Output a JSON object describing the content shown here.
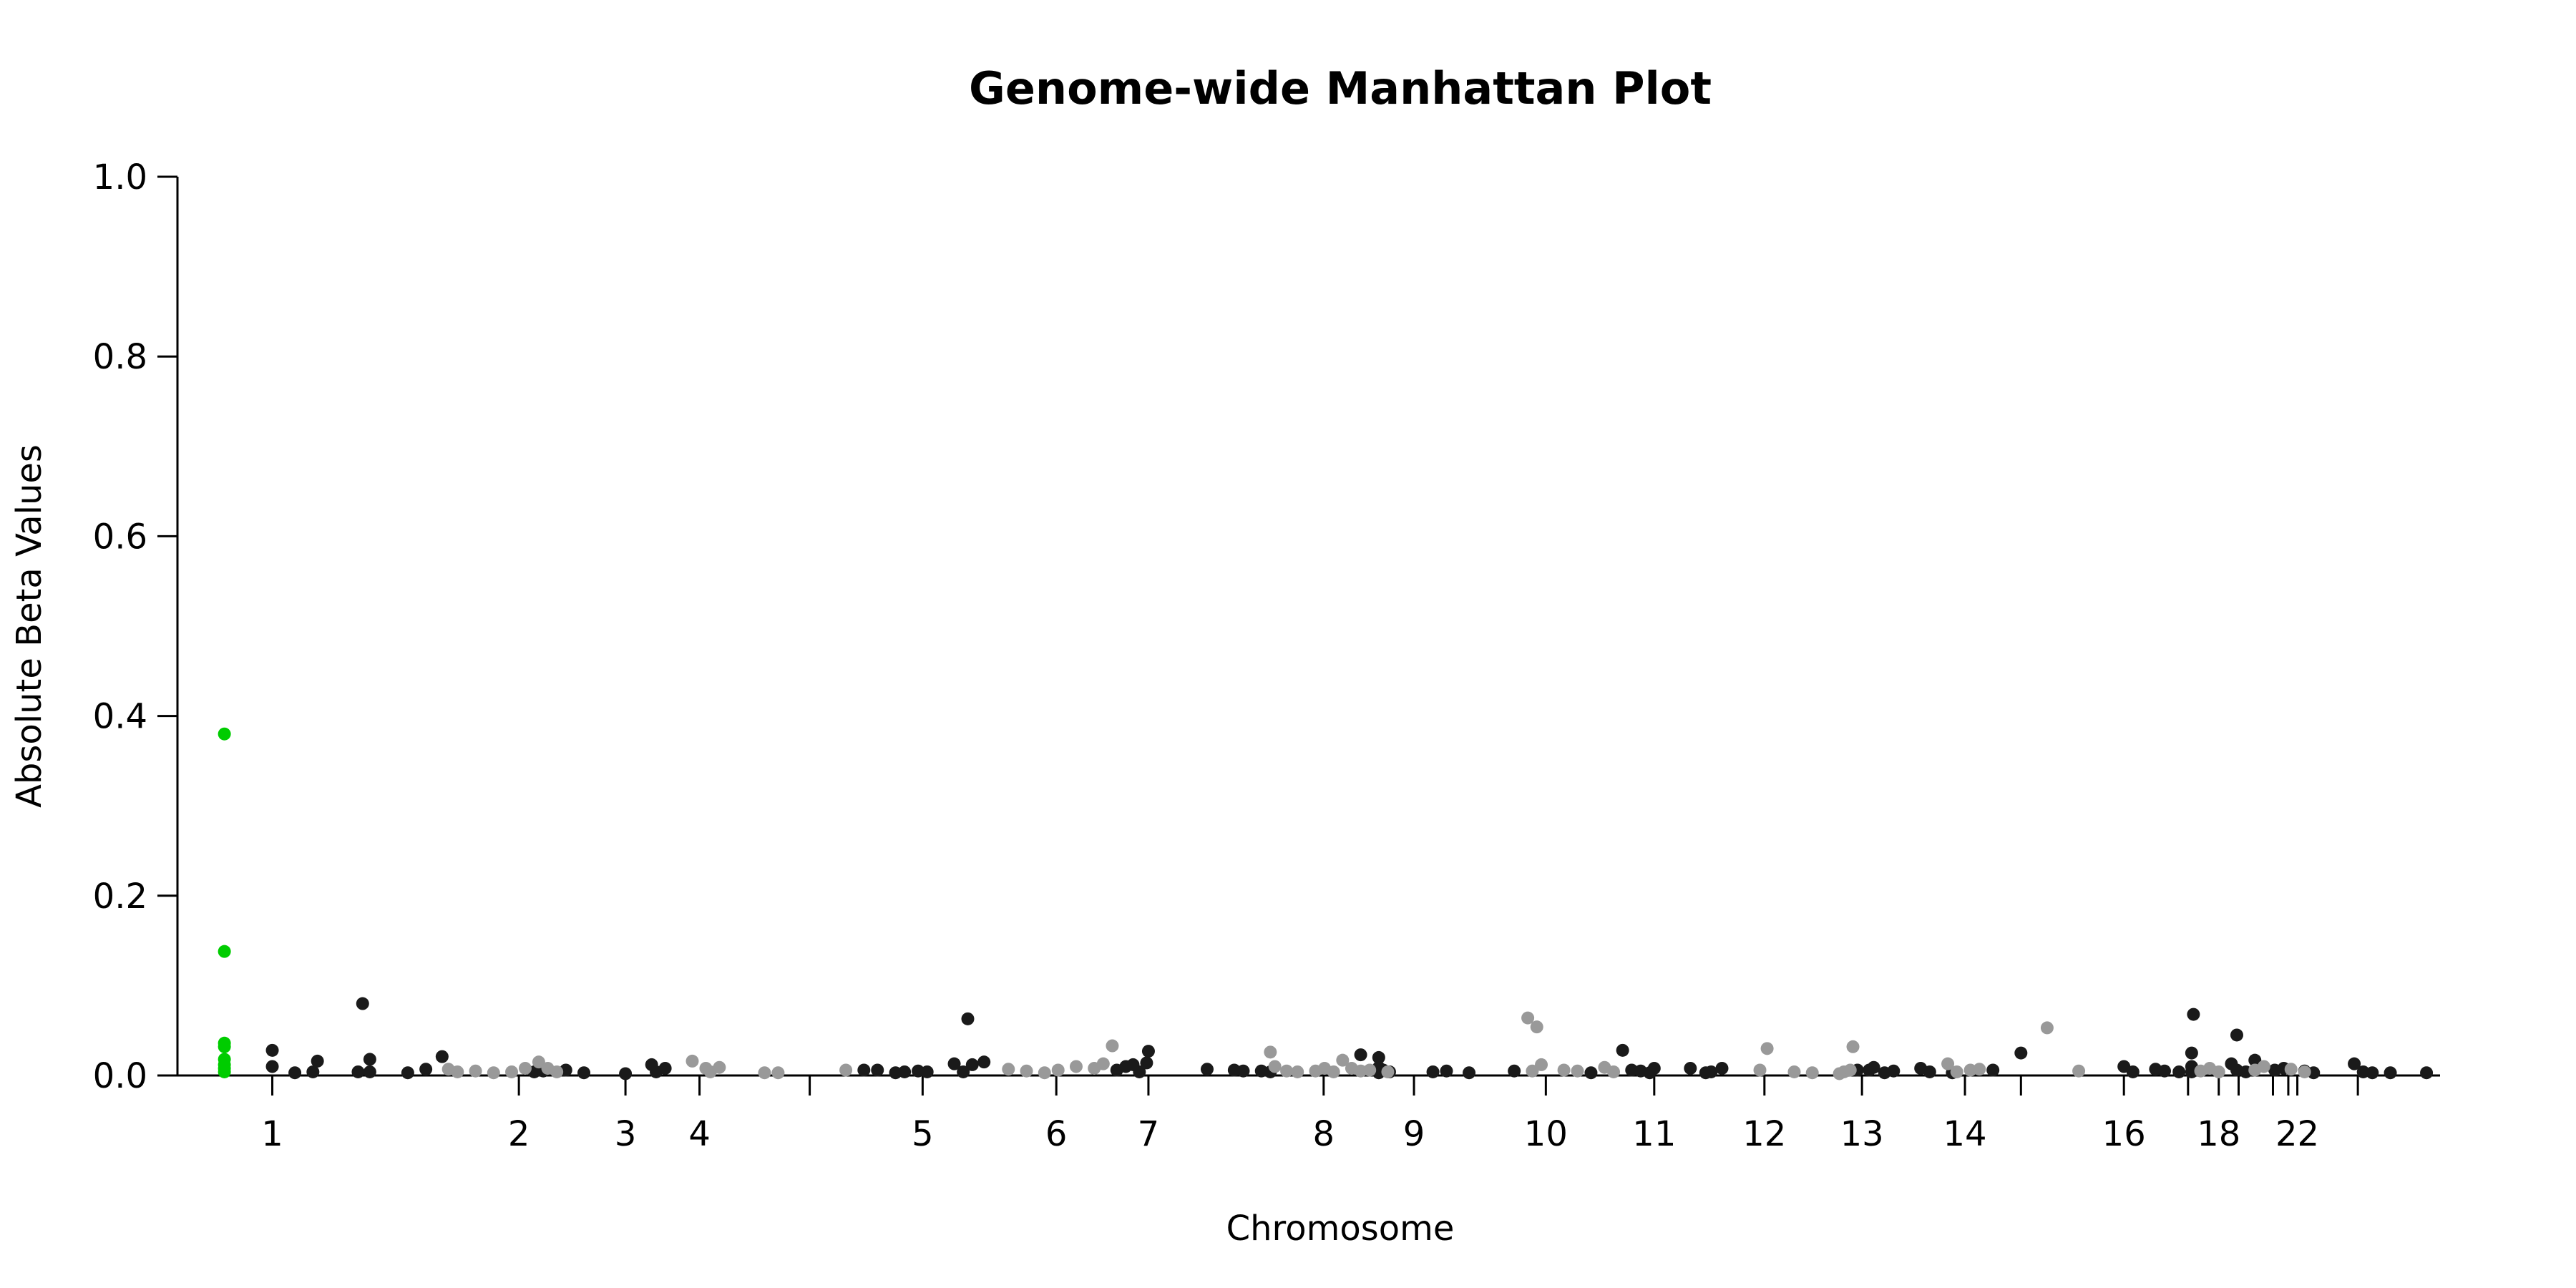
{
  "chart_data": {
    "type": "scatter",
    "title": "Genome-wide Manhattan Plot",
    "xlabel": "Chromosome",
    "ylabel": "Absolute Beta Values",
    "ylim": [
      0,
      1.0
    ],
    "yticks": [
      "0.0",
      "0.2",
      "0.4",
      "0.6",
      "0.8",
      "1.0"
    ],
    "xticks": [
      {
        "label": "1",
        "pos": 1.05
      },
      {
        "label": "2",
        "pos": 3.78
      },
      {
        "label": "3",
        "pos": 4.96
      },
      {
        "label": "4",
        "pos": 5.78
      },
      {
        "label": "",
        "pos": 7.0
      },
      {
        "label": "5",
        "pos": 8.25
      },
      {
        "label": "6",
        "pos": 9.73
      },
      {
        "label": "7",
        "pos": 10.75
      },
      {
        "label": "8",
        "pos": 12.69
      },
      {
        "label": "9",
        "pos": 13.69
      },
      {
        "label": "10",
        "pos": 15.15
      },
      {
        "label": "11",
        "pos": 16.35
      },
      {
        "label": "12",
        "pos": 17.57
      },
      {
        "label": "13",
        "pos": 18.65
      },
      {
        "label": "14",
        "pos": 19.79
      },
      {
        "label": "",
        "pos": 20.41
      },
      {
        "label": "16",
        "pos": 21.55
      },
      {
        "label": "",
        "pos": 22.26
      },
      {
        "label": "18",
        "pos": 22.6
      },
      {
        "label": "",
        "pos": 22.82
      },
      {
        "label": "",
        "pos": 23.2
      },
      {
        "label": "",
        "pos": 23.37
      },
      {
        "label": "22",
        "pos": 23.47
      },
      {
        "label": "",
        "pos": 24.14
      }
    ],
    "colors": {
      "black": "#1a1a1a",
      "grey": "#999999",
      "highlight": "#00cc00"
    },
    "series": [
      {
        "color": "highlight",
        "points": [
          [
            0.52,
            0.38
          ],
          [
            0.52,
            0.138
          ],
          [
            0.52,
            0.036
          ],
          [
            0.52,
            0.032
          ],
          [
            0.52,
            0.018
          ],
          [
            0.52,
            0.012
          ],
          [
            0.52,
            0.008
          ],
          [
            0.52,
            0.004
          ]
        ]
      },
      {
        "color": "black",
        "points": [
          [
            1.05,
            0.028
          ],
          [
            1.05,
            0.01
          ],
          [
            1.3,
            0.003
          ],
          [
            1.5,
            0.004
          ],
          [
            1.55,
            0.016
          ],
          [
            2.0,
            0.004
          ],
          [
            2.05,
            0.08
          ],
          [
            2.13,
            0.018
          ],
          [
            2.13,
            0.004
          ],
          [
            2.55,
            0.003
          ],
          [
            2.75,
            0.007
          ],
          [
            2.93,
            0.021
          ],
          [
            3.95,
            0.004
          ],
          [
            4.05,
            0.005
          ],
          [
            4.3,
            0.006
          ],
          [
            4.5,
            0.003
          ],
          [
            4.96,
            0.002
          ],
          [
            5.25,
            0.012
          ],
          [
            5.3,
            0.004
          ],
          [
            5.4,
            0.008
          ],
          [
            7.6,
            0.006
          ],
          [
            7.75,
            0.006
          ],
          [
            7.95,
            0.003
          ],
          [
            8.05,
            0.004
          ],
          [
            8.2,
            0.005
          ],
          [
            8.3,
            0.004
          ],
          [
            8.6,
            0.013
          ],
          [
            8.75,
            0.063
          ],
          [
            8.8,
            0.012
          ],
          [
            8.93,
            0.015
          ],
          [
            8.7,
            0.004
          ],
          [
            10.4,
            0.006
          ],
          [
            10.5,
            0.01
          ],
          [
            10.58,
            0.012
          ],
          [
            10.65,
            0.004
          ],
          [
            10.75,
            0.027
          ],
          [
            10.73,
            0.014
          ],
          [
            11.4,
            0.007
          ],
          [
            11.7,
            0.006
          ],
          [
            11.8,
            0.005
          ],
          [
            12.0,
            0.005
          ],
          [
            12.1,
            0.004
          ],
          [
            13.1,
            0.023
          ],
          [
            13.3,
            0.02
          ],
          [
            13.3,
            0.009
          ],
          [
            13.35,
            0.006
          ],
          [
            13.42,
            0.004
          ],
          [
            13.3,
            0.003
          ],
          [
            13.9,
            0.004
          ],
          [
            14.05,
            0.005
          ],
          [
            14.3,
            0.003
          ],
          [
            14.8,
            0.005
          ],
          [
            15.65,
            0.003
          ],
          [
            16.0,
            0.028
          ],
          [
            16.1,
            0.006
          ],
          [
            16.2,
            0.005
          ],
          [
            16.35,
            0.008
          ],
          [
            16.3,
            0.003
          ],
          [
            16.75,
            0.008
          ],
          [
            16.92,
            0.003
          ],
          [
            16.98,
            0.004
          ],
          [
            17.1,
            0.008
          ],
          [
            18.6,
            0.006
          ],
          [
            18.73,
            0.006
          ],
          [
            18.78,
            0.009
          ],
          [
            18.9,
            0.003
          ],
          [
            19.0,
            0.005
          ],
          [
            19.3,
            0.008
          ],
          [
            19.4,
            0.004
          ],
          [
            19.65,
            0.003
          ],
          [
            20.1,
            0.006
          ],
          [
            20.41,
            0.025
          ],
          [
            21.55,
            0.01
          ],
          [
            21.65,
            0.004
          ],
          [
            21.9,
            0.007
          ],
          [
            22.0,
            0.005
          ],
          [
            22.16,
            0.004
          ],
          [
            22.32,
            0.068
          ],
          [
            22.3,
            0.025
          ],
          [
            22.3,
            0.01
          ],
          [
            22.3,
            0.004
          ],
          [
            22.8,
            0.045
          ],
          [
            22.74,
            0.013
          ],
          [
            22.8,
            0.006
          ],
          [
            22.9,
            0.004
          ],
          [
            23.0,
            0.017
          ],
          [
            23.22,
            0.006
          ],
          [
            23.32,
            0.008
          ],
          [
            23.55,
            0.005
          ],
          [
            23.65,
            0.003
          ],
          [
            24.1,
            0.013
          ],
          [
            24.2,
            0.004
          ],
          [
            24.3,
            0.003
          ],
          [
            24.5,
            0.003
          ],
          [
            24.9,
            0.003
          ]
        ]
      },
      {
        "color": "grey",
        "points": [
          [
            3.0,
            0.007
          ],
          [
            3.1,
            0.004
          ],
          [
            3.3,
            0.005
          ],
          [
            3.5,
            0.003
          ],
          [
            3.7,
            0.004
          ],
          [
            3.85,
            0.008
          ],
          [
            4.0,
            0.015
          ],
          [
            4.1,
            0.008
          ],
          [
            4.2,
            0.004
          ],
          [
            5.7,
            0.016
          ],
          [
            5.85,
            0.008
          ],
          [
            6.0,
            0.009
          ],
          [
            5.9,
            0.004
          ],
          [
            6.5,
            0.003
          ],
          [
            6.65,
            0.003
          ],
          [
            7.4,
            0.006
          ],
          [
            9.2,
            0.007
          ],
          [
            9.4,
            0.005
          ],
          [
            9.6,
            0.003
          ],
          [
            9.75,
            0.006
          ],
          [
            9.95,
            0.01
          ],
          [
            10.15,
            0.008
          ],
          [
            10.25,
            0.013
          ],
          [
            10.35,
            0.033
          ],
          [
            12.1,
            0.026
          ],
          [
            12.15,
            0.01
          ],
          [
            12.28,
            0.005
          ],
          [
            12.4,
            0.004
          ],
          [
            12.6,
            0.005
          ],
          [
            12.7,
            0.008
          ],
          [
            12.9,
            0.017
          ],
          [
            13.0,
            0.008
          ],
          [
            13.1,
            0.005
          ],
          [
            13.2,
            0.006
          ],
          [
            13.4,
            0.004
          ],
          [
            12.8,
            0.004
          ],
          [
            14.95,
            0.064
          ],
          [
            15.05,
            0.054
          ],
          [
            15.1,
            0.012
          ],
          [
            15.0,
            0.005
          ],
          [
            15.35,
            0.006
          ],
          [
            15.5,
            0.005
          ],
          [
            15.8,
            0.009
          ],
          [
            15.9,
            0.004
          ],
          [
            17.52,
            0.006
          ],
          [
            17.6,
            0.03
          ],
          [
            17.9,
            0.004
          ],
          [
            18.1,
            0.003
          ],
          [
            18.45,
            0.004
          ],
          [
            18.52,
            0.006
          ],
          [
            18.55,
            0.032
          ],
          [
            18.4,
            0.002
          ],
          [
            19.6,
            0.013
          ],
          [
            19.7,
            0.004
          ],
          [
            19.85,
            0.006
          ],
          [
            19.95,
            0.007
          ],
          [
            20.7,
            0.053
          ],
          [
            21.05,
            0.005
          ],
          [
            22.4,
            0.005
          ],
          [
            22.5,
            0.008
          ],
          [
            22.6,
            0.004
          ],
          [
            23.0,
            0.006
          ],
          [
            23.1,
            0.01
          ],
          [
            23.4,
            0.007
          ],
          [
            23.55,
            0.004
          ]
        ]
      }
    ]
  }
}
